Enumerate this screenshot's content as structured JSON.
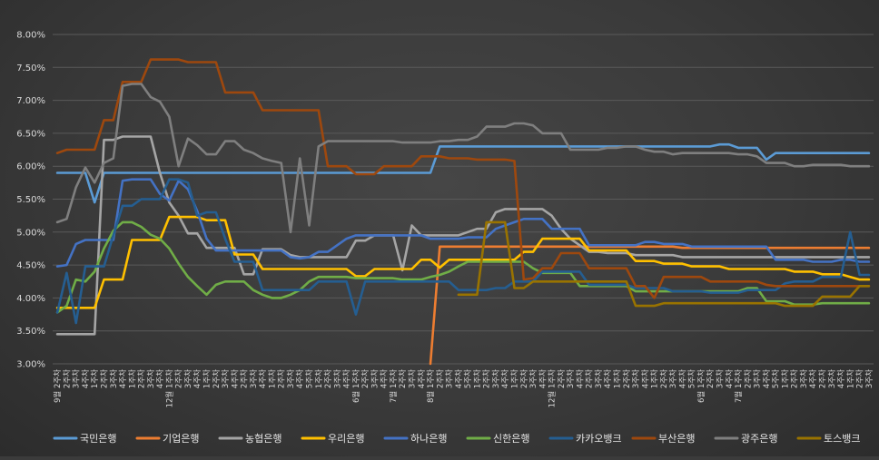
{
  "chart_data": {
    "type": "line",
    "title": "",
    "xlabel": "",
    "ylabel": "",
    "ylim": [
      0.03,
      0.08
    ],
    "y_ticks": [
      "3.00%",
      "3.50%",
      "4.00%",
      "4.50%",
      "5.00%",
      "5.50%",
      "6.00%",
      "6.50%",
      "7.00%",
      "7.50%",
      "8.00%"
    ],
    "grid": true,
    "legend_position": "bottom",
    "x": [
      "9월 2주차",
      "2주차",
      "3주차",
      "4주차",
      "1주차",
      "2주차",
      "3주차",
      "4주차",
      "1주차",
      "2주차",
      "3주차",
      "4주차",
      "12월 1주차",
      "2주차",
      "3주차",
      "4주차",
      "1주차",
      "2주차",
      "3주차",
      "4주차",
      "2주차",
      "3주차",
      "4주차",
      "1주차",
      "2주차",
      "3주차",
      "4주차",
      "5주차",
      "1주차",
      "2주차",
      "3주차",
      "4주차",
      "6월 1주차",
      "2주차",
      "3주차",
      "4주차",
      "7월 1주차",
      "2주차",
      "3주차",
      "4주차",
      "8월 1주차",
      "2주차",
      "3주차",
      "4주차",
      "5주차",
      "1주차",
      "2주차",
      "3주차",
      "4주차",
      "1주차",
      "2주차",
      "3주차",
      "4주차",
      "12월 1주차",
      "2주차",
      "3주차",
      "4주차",
      "2주차",
      "3주차",
      "4주차",
      "1주차",
      "2주차",
      "3주차",
      "4주차",
      "1주차",
      "2주차",
      "3주차",
      "4주차",
      "5주차",
      "6월 1주차",
      "2주차",
      "3주차",
      "4주차",
      "7월 1주차",
      "2주차",
      "3주차",
      "4주차",
      "5주차",
      "1주차",
      "2주차",
      "3주차",
      "4주차",
      "2주차",
      "3주차",
      "4주차",
      "1주차",
      "2주차",
      "3주차"
    ],
    "series": [
      {
        "name": "국민은행",
        "color": "#5b9bd5",
        "values": [
          0.059,
          0.059,
          0.059,
          0.059,
          0.0545,
          0.059,
          0.059,
          0.059,
          0.059,
          0.059,
          0.059,
          0.059,
          0.059,
          0.059,
          0.059,
          0.059,
          0.059,
          0.059,
          0.059,
          0.059,
          0.059,
          0.059,
          0.059,
          0.059,
          0.059,
          0.059,
          0.059,
          0.059,
          0.059,
          0.059,
          0.059,
          0.059,
          0.059,
          0.059,
          0.059,
          0.059,
          0.059,
          0.059,
          0.059,
          0.059,
          0.059,
          0.063,
          0.063,
          0.063,
          0.063,
          0.063,
          0.063,
          0.063,
          0.063,
          0.063,
          0.063,
          0.063,
          0.063,
          0.063,
          0.063,
          0.063,
          0.063,
          0.063,
          0.063,
          0.063,
          0.063,
          0.063,
          0.063,
          0.063,
          0.063,
          0.063,
          0.063,
          0.063,
          0.063,
          0.063,
          0.063,
          0.0633,
          0.0633,
          0.0628,
          0.0628,
          0.0628,
          0.061,
          0.062,
          0.062,
          0.062,
          0.062,
          0.062,
          0.062,
          0.062,
          0.062,
          0.062,
          0.062,
          0.062
        ]
      },
      {
        "name": "기업은행",
        "color": "#ed7d31",
        "values": [
          null,
          null,
          null,
          null,
          null,
          null,
          null,
          null,
          null,
          null,
          null,
          null,
          null,
          null,
          null,
          null,
          null,
          null,
          null,
          null,
          null,
          null,
          null,
          null,
          null,
          null,
          null,
          null,
          null,
          null,
          null,
          null,
          null,
          null,
          null,
          null,
          null,
          null,
          null,
          null,
          0.03,
          0.0478,
          0.0478,
          0.0478,
          0.0478,
          0.0478,
          0.0478,
          0.0478,
          0.0478,
          0.0478,
          0.0478,
          0.0478,
          0.0478,
          0.0478,
          0.0478,
          0.0478,
          0.0478,
          0.0478,
          0.0478,
          0.0478,
          0.0478,
          0.0478,
          0.0478,
          0.0478,
          0.0478,
          0.0478,
          0.0478,
          0.0476,
          0.0476,
          0.0476,
          0.0476,
          0.0476,
          0.0476,
          0.0476,
          0.0476,
          0.0476,
          0.0476,
          0.0476,
          0.0476,
          0.0476,
          0.0476,
          0.0476,
          0.0476,
          0.0476,
          0.0476,
          0.0476,
          0.0476,
          0.0476
        ]
      },
      {
        "name": "농협은행",
        "color": "#a5a5a5",
        "values": [
          0.0345,
          0.0345,
          0.0345,
          0.0345,
          0.0345,
          0.064,
          0.064,
          0.0645,
          0.0645,
          0.0645,
          0.0645,
          0.059,
          0.0545,
          0.0525,
          0.0498,
          0.0498,
          0.0476,
          0.0476,
          0.0476,
          0.0476,
          0.0436,
          0.0436,
          0.0474,
          0.0474,
          0.0474,
          0.0465,
          0.0462,
          0.0462,
          0.0462,
          0.0462,
          0.0462,
          0.0462,
          0.0487,
          0.0487,
          0.0495,
          0.0495,
          0.0495,
          0.0442,
          0.051,
          0.0495,
          0.0495,
          0.0495,
          0.0495,
          0.0495,
          0.05,
          0.0505,
          0.0505,
          0.053,
          0.0535,
          0.0535,
          0.0535,
          0.0535,
          0.0535,
          0.0525,
          0.0505,
          0.049,
          0.048,
          0.047,
          0.047,
          0.0468,
          0.0468,
          0.0468,
          0.0465,
          0.0465,
          0.0465,
          0.0465,
          0.0465,
          0.0462,
          0.0462,
          0.0462,
          0.0462,
          0.0462,
          0.0462,
          0.0462,
          0.0462,
          0.0462,
          0.0462,
          0.0462,
          0.0462,
          0.0462,
          0.0462,
          0.0462,
          0.0462,
          0.0462,
          0.0462,
          0.0462,
          0.0462,
          0.0462
        ]
      },
      {
        "name": "우리은행",
        "color": "#ffc000",
        "values": [
          0.0385,
          0.0385,
          0.0385,
          0.0385,
          0.0385,
          0.0428,
          0.0428,
          0.0428,
          0.0488,
          0.0488,
          0.0488,
          0.0488,
          0.0523,
          0.0523,
          0.0523,
          0.0523,
          0.0518,
          0.0518,
          0.0518,
          0.0466,
          0.0466,
          0.0466,
          0.0444,
          0.0444,
          0.0444,
          0.0444,
          0.0444,
          0.0444,
          0.0444,
          0.0444,
          0.0444,
          0.0444,
          0.0433,
          0.0433,
          0.0444,
          0.0444,
          0.0444,
          0.0444,
          0.0444,
          0.0458,
          0.0458,
          0.0446,
          0.0458,
          0.0458,
          0.0458,
          0.0458,
          0.0458,
          0.0458,
          0.0458,
          0.0458,
          0.047,
          0.047,
          0.049,
          0.049,
          0.049,
          0.049,
          0.049,
          0.0472,
          0.0472,
          0.0472,
          0.0472,
          0.0472,
          0.0456,
          0.0456,
          0.0456,
          0.0452,
          0.0452,
          0.0452,
          0.0448,
          0.0448,
          0.0448,
          0.0448,
          0.0444,
          0.0444,
          0.0444,
          0.0444,
          0.0444,
          0.0444,
          0.0444,
          0.044,
          0.044,
          0.044,
          0.0436,
          0.0436,
          0.0436,
          0.0432,
          0.0428,
          0.0428
        ]
      },
      {
        "name": "하나은행",
        "color": "#4472c4",
        "values": [
          0.0448,
          0.045,
          0.0482,
          0.0488,
          0.0488,
          0.0488,
          0.0488,
          0.0578,
          0.058,
          0.058,
          0.058,
          0.0558,
          0.0548,
          0.0578,
          0.0565,
          0.0532,
          0.049,
          0.0472,
          0.0472,
          0.0472,
          0.0472,
          0.0472,
          0.0472,
          0.0472,
          0.0472,
          0.0462,
          0.046,
          0.0462,
          0.047,
          0.047,
          0.048,
          0.049,
          0.0495,
          0.0495,
          0.0495,
          0.0495,
          0.0495,
          0.0495,
          0.0495,
          0.0495,
          0.049,
          0.049,
          0.049,
          0.049,
          0.0492,
          0.0492,
          0.0492,
          0.0505,
          0.051,
          0.0515,
          0.052,
          0.052,
          0.052,
          0.0505,
          0.0505,
          0.0505,
          0.0505,
          0.048,
          0.048,
          0.048,
          0.048,
          0.048,
          0.048,
          0.0485,
          0.0485,
          0.0482,
          0.0482,
          0.0482,
          0.0478,
          0.0478,
          0.0478,
          0.0478,
          0.0478,
          0.0478,
          0.0478,
          0.0478,
          0.0478,
          0.0458,
          0.0458,
          0.0458,
          0.0458,
          0.0455,
          0.0455,
          0.0455,
          0.0458,
          0.0458,
          0.0455,
          0.0455
        ]
      },
      {
        "name": "신한은행",
        "color": "#70ad47",
        "values": [
          0.0378,
          0.0388,
          0.0428,
          0.0425,
          0.044,
          0.0475,
          0.0502,
          0.0515,
          0.0515,
          0.0508,
          0.0496,
          0.049,
          0.0475,
          0.0452,
          0.0432,
          0.0418,
          0.0405,
          0.042,
          0.0425,
          0.0425,
          0.0425,
          0.0412,
          0.0405,
          0.04,
          0.04,
          0.0405,
          0.0412,
          0.0425,
          0.0432,
          0.0432,
          0.0432,
          0.0432,
          0.043,
          0.043,
          0.043,
          0.043,
          0.043,
          0.0428,
          0.0428,
          0.0428,
          0.0432,
          0.0435,
          0.044,
          0.0448,
          0.0455,
          0.0455,
          0.0455,
          0.0455,
          0.0455,
          0.0455,
          0.0455,
          0.0445,
          0.0438,
          0.0438,
          0.0438,
          0.0438,
          0.0418,
          0.0418,
          0.0418,
          0.0418,
          0.0418,
          0.0418,
          0.041,
          0.041,
          0.041,
          0.041,
          0.041,
          0.041,
          0.041,
          0.041,
          0.041,
          0.041,
          0.041,
          0.041,
          0.0415,
          0.0415,
          0.0395,
          0.0395,
          0.0395,
          0.039,
          0.039,
          0.039,
          0.0392,
          0.0392,
          0.0392,
          0.0392,
          0.0392,
          0.0392
        ]
      },
      {
        "name": "카카오뱅크",
        "color": "#255e91",
        "values": [
          0.0378,
          0.0438,
          0.0362,
          0.0448,
          0.0448,
          0.0448,
          0.0495,
          0.054,
          0.054,
          0.055,
          0.055,
          0.055,
          0.058,
          0.058,
          0.0575,
          0.0525,
          0.053,
          0.053,
          0.049,
          0.0455,
          0.0455,
          0.0455,
          0.0412,
          0.0412,
          0.0412,
          0.0412,
          0.0412,
          0.0412,
          0.0425,
          0.0425,
          0.0425,
          0.0425,
          0.0375,
          0.0425,
          0.0425,
          0.0425,
          0.0425,
          0.0425,
          0.0425,
          0.0425,
          0.0425,
          0.0425,
          0.0425,
          0.0412,
          0.0412,
          0.0412,
          0.0412,
          0.0415,
          0.0415,
          0.0425,
          0.0425,
          0.0425,
          0.044,
          0.044,
          0.044,
          0.044,
          0.044,
          0.042,
          0.042,
          0.042,
          0.042,
          0.042,
          0.0415,
          0.0415,
          0.0415,
          0.0415,
          0.041,
          0.041,
          0.041,
          0.041,
          0.0408,
          0.0408,
          0.0408,
          0.0408,
          0.0412,
          0.0412,
          0.0412,
          0.0412,
          0.0422,
          0.0425,
          0.0425,
          0.0425,
          0.0432,
          0.0432,
          0.0432,
          0.05,
          0.0435,
          0.0435
        ]
      },
      {
        "name": "부산은행",
        "color": "#9e480e",
        "values": [
          0.062,
          0.0625,
          0.0625,
          0.0625,
          0.0625,
          0.067,
          0.067,
          0.0728,
          0.0728,
          0.0728,
          0.0762,
          0.0762,
          0.0762,
          0.0762,
          0.0758,
          0.0758,
          0.0758,
          0.0758,
          0.0712,
          0.0712,
          0.0712,
          0.0712,
          0.0685,
          0.0685,
          0.0685,
          0.0685,
          0.0685,
          0.0685,
          0.0685,
          0.06,
          0.06,
          0.06,
          0.0588,
          0.0588,
          0.0588,
          0.06,
          0.06,
          0.06,
          0.06,
          0.0615,
          0.0615,
          0.0615,
          0.0612,
          0.0612,
          0.0612,
          0.061,
          0.061,
          0.061,
          0.061,
          0.0608,
          0.0428,
          0.043,
          0.0445,
          0.0445,
          0.0468,
          0.0468,
          0.0468,
          0.0445,
          0.0445,
          0.0445,
          0.0445,
          0.0445,
          0.0418,
          0.0418,
          0.04,
          0.0432,
          0.0432,
          0.0432,
          0.0432,
          0.0432,
          0.0425,
          0.0425,
          0.0425,
          0.0425,
          0.0425,
          0.0425,
          0.042,
          0.0418,
          0.0418,
          0.0418,
          0.0418,
          0.0418,
          0.0418,
          0.0418,
          0.0418,
          0.0418,
          0.0418,
          0.0418
        ]
      },
      {
        "name": "광주은행",
        "color": "#7f7f7f",
        "values": [
          0.0515,
          0.052,
          0.0568,
          0.0598,
          0.0575,
          0.0605,
          0.0612,
          0.0722,
          0.0725,
          0.0725,
          0.0705,
          0.0698,
          0.0675,
          0.06,
          0.0642,
          0.0632,
          0.0618,
          0.0618,
          0.0638,
          0.0638,
          0.0625,
          0.062,
          0.0612,
          0.0608,
          0.0605,
          0.05,
          0.0612,
          0.051,
          0.063,
          0.0638,
          0.0638,
          0.0638,
          0.0638,
          0.0638,
          0.0638,
          0.0638,
          0.0638,
          0.0636,
          0.0636,
          0.0636,
          0.0636,
          0.0638,
          0.0638,
          0.064,
          0.064,
          0.0645,
          0.066,
          0.066,
          0.066,
          0.0665,
          0.0665,
          0.0662,
          0.065,
          0.065,
          0.065,
          0.0625,
          0.0625,
          0.0625,
          0.0625,
          0.0628,
          0.0628,
          0.063,
          0.063,
          0.0625,
          0.0622,
          0.0622,
          0.0618,
          0.062,
          0.062,
          0.062,
          0.062,
          0.062,
          0.062,
          0.0618,
          0.0618,
          0.0615,
          0.0605,
          0.0605,
          0.0605,
          0.06,
          0.06,
          0.0602,
          0.0602,
          0.0602,
          0.0602,
          0.06,
          0.06,
          0.06
        ]
      },
      {
        "name": "토스뱅크",
        "color": "#997300",
        "values": [
          null,
          null,
          null,
          null,
          null,
          null,
          null,
          null,
          null,
          null,
          null,
          null,
          null,
          null,
          null,
          null,
          null,
          null,
          null,
          null,
          null,
          null,
          null,
          null,
          null,
          null,
          null,
          null,
          null,
          null,
          null,
          null,
          null,
          null,
          null,
          null,
          null,
          null,
          null,
          null,
          null,
          null,
          null,
          0.0405,
          0.0405,
          0.0405,
          0.0515,
          0.0515,
          0.0515,
          0.0415,
          0.0415,
          0.0425,
          0.0425,
          0.0425,
          0.0425,
          0.0425,
          0.0425,
          0.0425,
          0.0425,
          0.0425,
          0.0425,
          0.0425,
          0.0388,
          0.0388,
          0.0388,
          0.0392,
          0.0392,
          0.0392,
          0.0392,
          0.0392,
          0.0392,
          0.0392,
          0.0392,
          0.0392,
          0.0392,
          0.0392,
          0.0392,
          0.0392,
          0.0388,
          0.0388,
          0.0388,
          0.0388,
          0.0402,
          0.0402,
          0.0402,
          0.0402,
          0.0418,
          0.0418
        ]
      }
    ]
  }
}
